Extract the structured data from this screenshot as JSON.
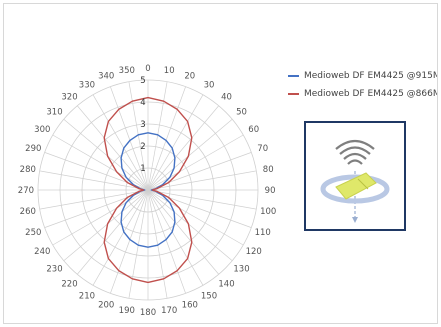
{
  "chart_data": {
    "type": "polar-line",
    "angle_unit": "degrees",
    "angle_ticks": [
      0,
      10,
      20,
      30,
      40,
      50,
      60,
      70,
      80,
      90,
      100,
      110,
      120,
      130,
      140,
      150,
      160,
      170,
      180,
      190,
      200,
      210,
      220,
      230,
      240,
      250,
      260,
      270,
      280,
      290,
      300,
      310,
      320,
      330,
      340,
      350
    ],
    "radial_ticks": [
      1,
      2,
      3,
      4,
      5
    ],
    "rlim": [
      0,
      5
    ],
    "grid": true,
    "legend_position": "right",
    "series": [
      {
        "name": "Medioweb DF EM4425 @915MHz",
        "color": "#4472c4",
        "angles": [
          0,
          10,
          20,
          30,
          40,
          50,
          60,
          70,
          80,
          90,
          100,
          110,
          120,
          130,
          140,
          150,
          160,
          170,
          180,
          190,
          200,
          210,
          220,
          230,
          240,
          250,
          260,
          270,
          280,
          290,
          300,
          310,
          320,
          330,
          340,
          350
        ],
        "values": [
          2.6,
          2.55,
          2.4,
          2.2,
          1.9,
          1.55,
          1.15,
          0.7,
          0.35,
          0.15,
          0.35,
          0.7,
          1.15,
          1.55,
          1.9,
          2.2,
          2.4,
          2.55,
          2.6,
          2.55,
          2.4,
          2.2,
          1.9,
          1.55,
          1.15,
          0.7,
          0.35,
          0.15,
          0.35,
          0.7,
          1.15,
          1.55,
          1.9,
          2.2,
          2.4,
          2.55
        ]
      },
      {
        "name": "Medioweb DF EM4425 @866MHz",
        "color": "#c0504d",
        "angles": [
          0,
          10,
          20,
          30,
          40,
          50,
          60,
          70,
          80,
          90,
          100,
          110,
          120,
          130,
          140,
          150,
          160,
          170,
          180,
          190,
          200,
          210,
          220,
          230,
          240,
          250,
          260,
          270,
          280,
          290,
          300,
          310,
          320,
          330,
          340,
          350
        ],
        "values": [
          4.2,
          4.1,
          3.9,
          3.6,
          3.1,
          2.4,
          1.65,
          1.0,
          0.45,
          0.2,
          0.45,
          1.0,
          1.65,
          2.4,
          3.1,
          3.6,
          3.9,
          4.1,
          4.2,
          4.1,
          3.9,
          3.6,
          3.1,
          2.4,
          1.65,
          1.0,
          0.45,
          0.2,
          0.45,
          1.0,
          1.65,
          2.4,
          3.1,
          3.6,
          3.9,
          4.1
        ]
      }
    ]
  },
  "colors": {
    "grid": "#d0d0d0",
    "tag_box_border": "#1f3864",
    "tag_illustration_accent": "#dfe86a"
  },
  "icons": {
    "tag_illustration": "rfid-tag-orientation-icon"
  }
}
